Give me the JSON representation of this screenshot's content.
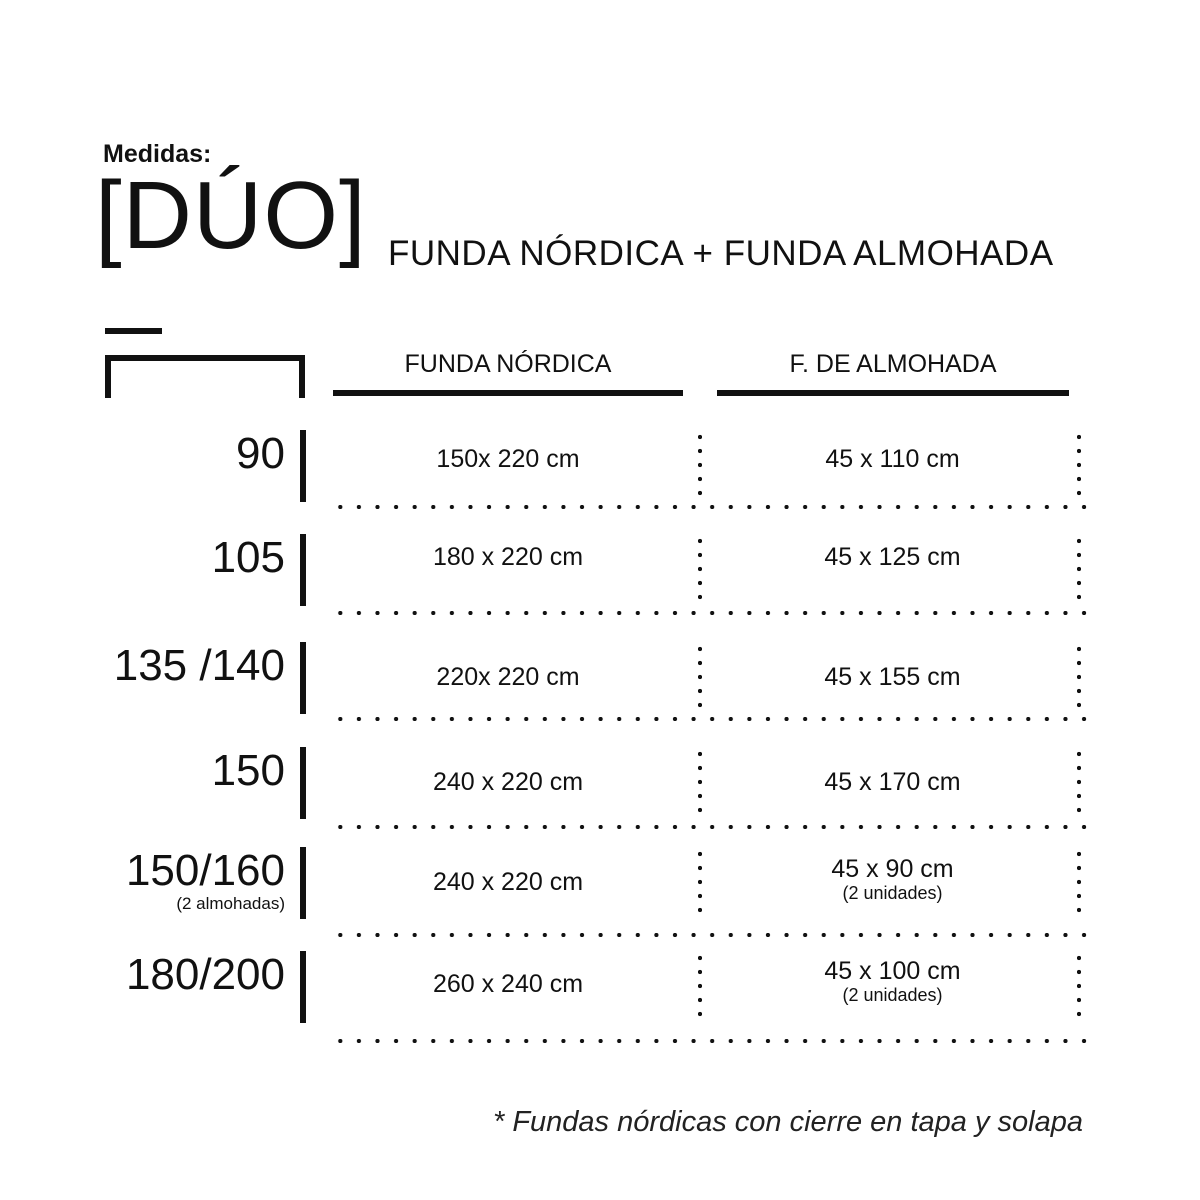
{
  "header": {
    "label": "Medidas:",
    "title": "[DÚO]",
    "subtitle": "FUNDA NÓRDICA + FUNDA ALMOHADA"
  },
  "columns": {
    "col1": "FUNDA NÓRDICA",
    "col2": "F. DE ALMOHADA"
  },
  "rows": [
    {
      "size": "90",
      "note": "",
      "nordica": "150x 220 cm",
      "almohada": "45 x 110  cm",
      "almohada_note": ""
    },
    {
      "size": "105",
      "note": "",
      "nordica": "180 x 220 cm",
      "almohada": "45 x 125 cm",
      "almohada_note": ""
    },
    {
      "size": "135 /140",
      "note": "",
      "nordica": "220x 220 cm",
      "almohada": "45 x 155 cm",
      "almohada_note": ""
    },
    {
      "size": "150",
      "note": "",
      "nordica": "240 x 220 cm",
      "almohada": "45 x 170 cm",
      "almohada_note": ""
    },
    {
      "size": "150/160",
      "note": "(2 almohadas)",
      "nordica": "240 x 220 cm",
      "almohada": "45 x 90 cm",
      "almohada_note": "(2 unidades)"
    },
    {
      "size": "180/200",
      "note": "",
      "nordica": "260 x 240 cm",
      "almohada": "45 x 100 cm",
      "almohada_note": "(2 unidades)"
    }
  ],
  "footer": "* Fundas nórdicas con cierre en tapa y solapa"
}
